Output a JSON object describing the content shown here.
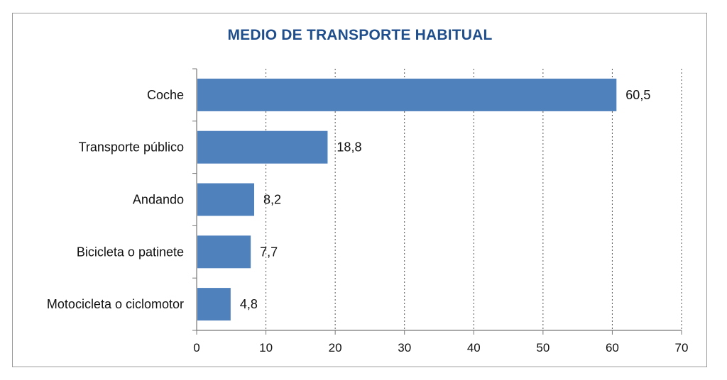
{
  "chart_data": {
    "type": "bar",
    "orientation": "horizontal",
    "title": "MEDIO DE TRANSPORTE HABITUAL",
    "categories": [
      "Coche",
      "Transporte público",
      "Andando",
      "Bicicleta o patinete",
      "Motocicleta o ciclomotor"
    ],
    "values": [
      60.5,
      18.8,
      8.2,
      7.7,
      4.8
    ],
    "value_labels": [
      "60,5",
      "18,8",
      "8,2",
      "7,7",
      "4,8"
    ],
    "xlim": [
      0,
      70
    ],
    "xticks": [
      0,
      10,
      20,
      30,
      40,
      50,
      60,
      70
    ],
    "grid": "vertical dotted",
    "legend": "none",
    "bar_color": "#4f81bd"
  }
}
